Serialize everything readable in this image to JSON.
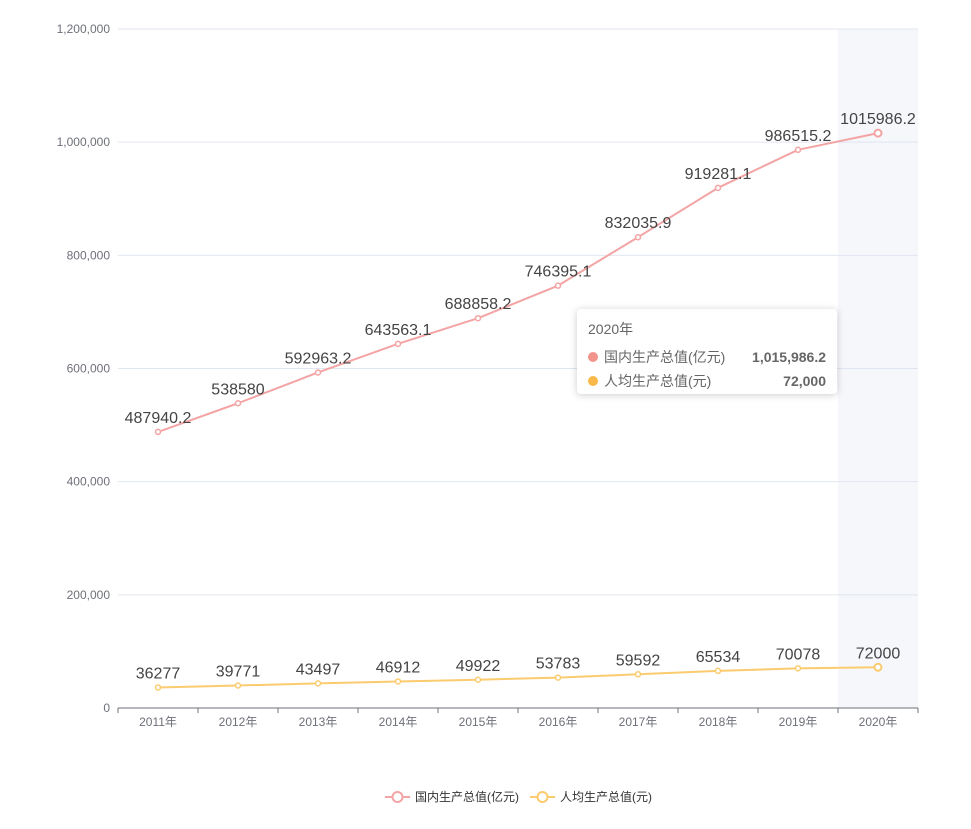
{
  "colors": {
    "gdp": "#f3a4a4",
    "per_capita": "#fbcb6f",
    "tooltip_gdp_dot": "#f2948c",
    "tooltip_pc_dot": "#f9b94a",
    "highlight_band": "#f6f7fb",
    "grid": "#e0e6f1",
    "axis": "#6e7079"
  },
  "chart_data": {
    "type": "line",
    "categories": [
      "2011年",
      "2012年",
      "2013年",
      "2014年",
      "2015年",
      "2016年",
      "2017年",
      "2018年",
      "2019年",
      "2020年"
    ],
    "series": [
      {
        "name": "国内生产总值(亿元)",
        "values": [
          487940.2,
          538580,
          592963.2,
          643563.1,
          688858.2,
          746395.1,
          832035.9,
          919281.1,
          986515.2,
          1015986.2
        ],
        "labels": [
          "487940.2",
          "538580",
          "592963.2",
          "643563.1",
          "688858.2",
          "746395.1",
          "832035.9",
          "919281.1",
          "986515.2",
          "1015986.2"
        ]
      },
      {
        "name": "人均生产总值(元)",
        "values": [
          36277,
          39771,
          43497,
          46912,
          49922,
          53783,
          59592,
          65534,
          70078,
          72000
        ],
        "labels": [
          "36277",
          "39771",
          "43497",
          "46912",
          "49922",
          "53783",
          "59592",
          "65534",
          "70078",
          "72000"
        ]
      }
    ],
    "ylim": [
      0,
      1200000
    ],
    "yticks": [
      0,
      200000,
      400000,
      600000,
      800000,
      1000000,
      1200000
    ],
    "ytick_labels": [
      "0",
      "200,000",
      "400,000",
      "600,000",
      "800,000",
      "1,000,000",
      "1,200,000"
    ],
    "grid": true,
    "legend_position": "bottom-center",
    "highlighted_category": "2020年"
  },
  "tooltip": {
    "title": "2020年",
    "rows": [
      {
        "name": "国内生产总值(亿元)",
        "value": "1,015,986.2"
      },
      {
        "name": "人均生产总值(元)",
        "value": "72,000"
      }
    ]
  }
}
